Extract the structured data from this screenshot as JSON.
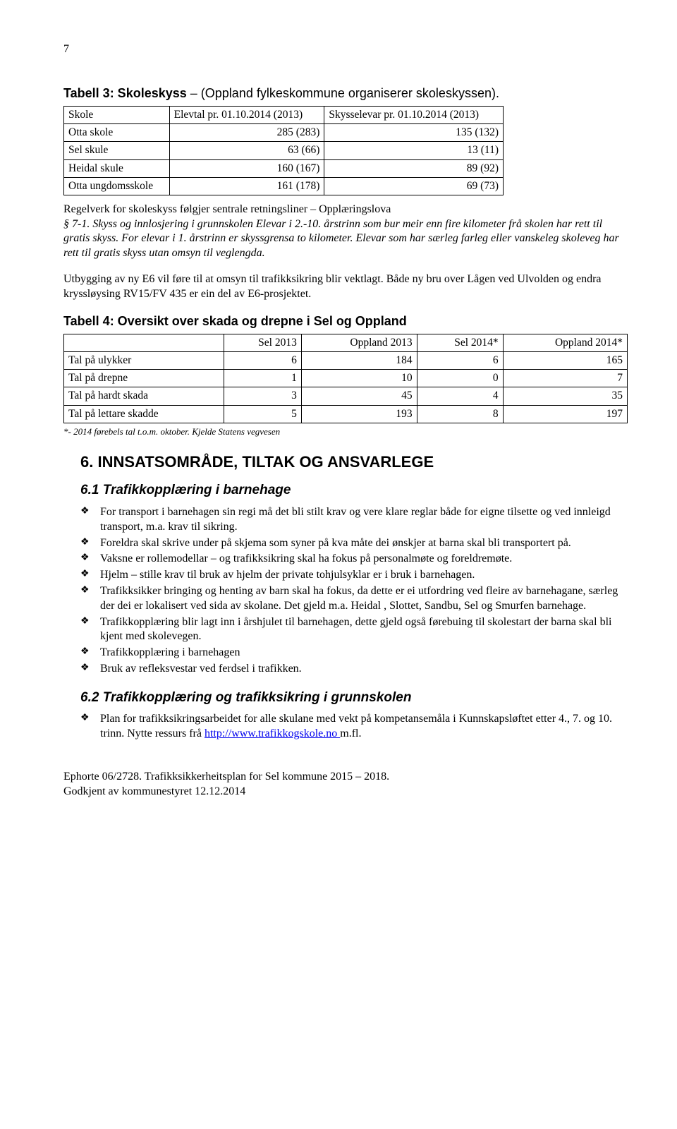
{
  "page_number": "7",
  "tabell3": {
    "title_strong": "Tabell 3: Skoleskyss",
    "title_light": " – (Oppland fylkeskommune organiserer skoleskyssen).",
    "headers": [
      "Skole",
      "Elevtal pr. 01.10.2014 (2013)",
      "Skysselevar pr. 01.10.2014 (2013)"
    ],
    "rows": [
      [
        "Otta skole",
        "285 (283)",
        "135 (132)"
      ],
      [
        "Sel skule",
        "63 (66)",
        "13 (11)"
      ],
      [
        "Heidal skule",
        "160 (167)",
        "89 (92)"
      ],
      [
        "Otta ungdomsskole",
        "161 (178)",
        "69 (73)"
      ]
    ]
  },
  "regelverk_intro": "Regelverk for skoleskyss følgjer sentrale retningsliner – Opplæringslova",
  "regelverk_body": "§ 7-1. Skyss og innlosjering i grunnskolen\nElevar i 2.-10. årstrinn som bur meir enn fire kilometer frå skolen har rett til gratis skyss. For elevar i 1. årstrinn er skyssgrensa to kilometer. Elevar som har særleg farleg eller vanskeleg skoleveg har rett til gratis skyss utan omsyn til veglengda.",
  "e6_para": "Utbygging av ny E6 vil føre til at omsyn til trafikksikring blir vektlagt. Både ny bru over Lågen ved Ulvolden og endra kryssløysing RV15/FV 435 er ein del av E6-prosjektet.",
  "tabell4": {
    "title": "Tabell 4: Oversikt over skada og drepne i Sel og Oppland",
    "headers": [
      "",
      "Sel 2013",
      "Oppland 2013",
      "Sel 2014*",
      "Oppland 2014*"
    ],
    "rows": [
      [
        "Tal på ulykker",
        "6",
        "184",
        "6",
        "165"
      ],
      [
        "Tal på drepne",
        "1",
        "10",
        "0",
        "7"
      ],
      [
        "Tal på hardt skada",
        "3",
        "45",
        "4",
        "35"
      ],
      [
        "Tal på lettare skadde",
        "5",
        "193",
        "8",
        "197"
      ]
    ],
    "footnote": "*- 2014 førebels tal t.o.m. oktober. Kjelde Statens vegvesen"
  },
  "sec6": {
    "heading": "6. INNSATSOMRÅDE, TILTAK OG ANSVARLEGE",
    "sub1": {
      "heading": "6.1   Trafikkopplæring i barnehage",
      "items": [
        "For transport i barnehagen sin regi må det bli stilt krav og vere klare reglar både for eigne tilsette og ved innleigd transport, m.a. krav til sikring.",
        "Foreldra skal skrive under på skjema som syner på kva måte dei ønskjer at barna skal bli transportert på.",
        "Vaksne er rollemodellar – og trafikksikring skal ha fokus på personalmøte og foreldremøte.",
        "Hjelm – stille krav til bruk av hjelm der private tohjulsyklar er i bruk i barnehagen.",
        "Trafikksikker bringing og henting av barn skal ha fokus, da dette er ei utfordring ved fleire av barnehagane, særleg der dei er lokalisert ved sida av skolane. Det gjeld m.a. Heidal , Slottet, Sandbu, Sel og Smurfen barnehage.",
        "Trafikkopplæring blir lagt inn i årshjulet til barnehagen, dette gjeld også førebuing til skolestart der barna skal bli kjent med skolevegen.",
        "Trafikkopplæring i barnehagen",
        "Bruk av refleksvestar ved ferdsel i trafikken."
      ]
    },
    "sub2": {
      "heading": "6.2   Trafikkopplæring og trafikksikring i grunnskolen",
      "item_prefix": "Plan for trafikksikringsarbeidet for alle skulane med vekt på kompetansemåla i Kunnskapsløftet etter 4., 7. og 10. trinn. Nytte ressurs frå ",
      "item_link_text": "http://www.trafikkogskole.no ",
      "item_link_href": "http://www.trafikkogskole.no",
      "item_suffix": "m.fl."
    }
  },
  "footer": {
    "line1": "Ephorte 06/2728. Trafikksikkerheitsplan for Sel kommune 2015 – 2018.",
    "line2": "Godkjent av kommunestyret 12.12.2014"
  }
}
